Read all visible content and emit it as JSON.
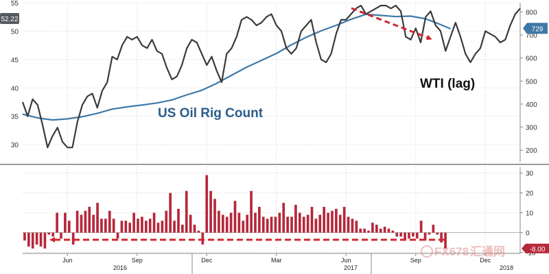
{
  "chart_data": [
    {
      "type": "line",
      "panel": "top",
      "x_axis": {
        "month_labels": [
          "Jun",
          "Sep",
          "Dec",
          "Mar",
          "Jun",
          "Sep",
          "Dec"
        ],
        "year_labels": [
          "2016",
          "2017",
          "2018"
        ]
      },
      "y_left": {
        "ticks": [
          30,
          35,
          40,
          45,
          50,
          55
        ],
        "range": [
          27,
          55
        ],
        "tag": "52.22",
        "tag_value": 52.22
      },
      "y_right": {
        "ticks": [
          200,
          300,
          400,
          500,
          600,
          700,
          800
        ],
        "range": [
          150,
          840
        ],
        "tag": "729",
        "tag_value": 729
      },
      "annotations": {
        "rig_label": "US Oil Rig Count",
        "wti_label": "WTI (lag)"
      },
      "series": [
        {
          "name": "WTI (lag)",
          "axis": "left",
          "color": "#3a3a3a",
          "t": [
            0.0,
            0.01,
            0.02,
            0.03,
            0.04,
            0.05,
            0.06,
            0.07,
            0.08,
            0.09,
            0.1,
            0.11,
            0.12,
            0.13,
            0.14,
            0.15,
            0.16,
            0.17,
            0.18,
            0.19,
            0.2,
            0.21,
            0.22,
            0.23,
            0.24,
            0.25,
            0.26,
            0.27,
            0.28,
            0.29,
            0.3,
            0.31,
            0.32,
            0.33,
            0.34,
            0.35,
            0.36,
            0.37,
            0.38,
            0.39,
            0.4,
            0.41,
            0.42,
            0.43,
            0.44,
            0.45,
            0.46,
            0.47,
            0.48,
            0.49,
            0.5,
            0.51,
            0.52,
            0.53,
            0.54,
            0.55,
            0.56,
            0.57,
            0.58,
            0.59,
            0.6,
            0.61,
            0.62,
            0.63,
            0.64,
            0.65,
            0.66,
            0.67,
            0.68,
            0.69,
            0.7,
            0.71,
            0.72,
            0.73,
            0.74,
            0.75,
            0.76,
            0.77,
            0.78,
            0.79,
            0.8,
            0.81,
            0.82,
            0.83,
            0.84,
            0.85,
            0.86,
            0.87,
            0.88,
            0.89,
            0.9,
            0.91,
            0.92,
            0.93,
            0.94,
            0.95,
            0.96,
            0.97,
            0.98,
            0.99,
            1.0
          ],
          "y": [
            37.5,
            35.0,
            38.0,
            37.0,
            33.5,
            29.5,
            31.5,
            33.0,
            30.5,
            29.5,
            29.5,
            34.0,
            37.0,
            38.5,
            39.0,
            36.5,
            39.5,
            41.0,
            45.5,
            45.0,
            47.5,
            49.0,
            48.5,
            49.0,
            47.5,
            47.0,
            48.5,
            46.5,
            46.0,
            43.5,
            41.5,
            42.0,
            44.0,
            47.0,
            48.5,
            48.0,
            46.0,
            44.0,
            45.5,
            43.0,
            41.0,
            46.0,
            47.0,
            49.0,
            52.0,
            52.5,
            52.0,
            51.0,
            51.5,
            52.5,
            53.0,
            51.0,
            50.0,
            47.0,
            46.0,
            47.0,
            50.0,
            51.0,
            52.0,
            48.0,
            45.0,
            44.5,
            46.0,
            49.5,
            52.0,
            52.0,
            53.0,
            54.0,
            54.5,
            53.0,
            53.5,
            54.0,
            54.5,
            54.5,
            54.0,
            54.5,
            53.5,
            49.0,
            48.5,
            50.5,
            48.0,
            52.5,
            53.5,
            51.0,
            50.0,
            46.5,
            49.0,
            51.5,
            49.0,
            46.0,
            44.5,
            46.0,
            47.0,
            50.0,
            49.5,
            49.0,
            48.0,
            48.5,
            51.0,
            53.0,
            54.0
          ]
        },
        {
          "name": "US Oil Rig Count",
          "axis": "right",
          "color": "#3e78a7",
          "t": [
            0.0,
            0.03,
            0.06,
            0.09,
            0.12,
            0.15,
            0.18,
            0.21,
            0.24,
            0.27,
            0.3,
            0.33,
            0.36,
            0.39,
            0.42,
            0.45,
            0.48,
            0.51,
            0.54,
            0.57,
            0.6,
            0.63,
            0.66,
            0.69,
            0.72,
            0.75,
            0.78,
            0.81,
            0.84,
            0.86
          ],
          "y": [
            356,
            340,
            331,
            336,
            345,
            360,
            378,
            388,
            396,
            405,
            418,
            440,
            460,
            490,
            525,
            560,
            590,
            620,
            657,
            690,
            718,
            742,
            768,
            790,
            785,
            780,
            782,
            770,
            745,
            727
          ]
        }
      ]
    },
    {
      "type": "bar",
      "panel": "bottom",
      "title": "",
      "y_axis": {
        "ticks": [
          -10,
          0,
          10,
          20,
          30
        ],
        "range": [
          -10.5,
          33
        ],
        "tag": "-8.00",
        "tag_value": -8
      },
      "series": [
        {
          "name": "",
          "color": "#b5283a",
          "values": [
            -4,
            -7,
            -8,
            -6,
            -7,
            -8,
            -1,
            -2,
            10,
            -3,
            10,
            6,
            -6,
            11,
            9,
            11,
            13,
            9,
            15,
            7,
            7,
            11,
            7,
            -3,
            6,
            6,
            5,
            10,
            7,
            8,
            6,
            7,
            10,
            5,
            6,
            11,
            20,
            6,
            12,
            4,
            21,
            9,
            4,
            1,
            -6,
            29,
            21,
            17,
            11,
            9,
            8,
            10,
            16,
            10,
            6,
            9,
            21,
            10,
            13,
            8,
            7,
            8,
            8,
            10,
            15,
            8,
            8,
            14,
            10,
            8,
            9,
            13,
            7,
            9,
            13,
            10,
            11,
            12,
            9,
            13,
            8,
            7,
            6,
            2,
            2,
            1,
            5,
            4,
            2,
            3,
            2,
            1,
            -2,
            -2,
            -4,
            -3,
            -2,
            -3,
            6,
            -4,
            -1,
            4,
            -1,
            -5,
            -8
          ]
        }
      ],
      "arrow_color": "#d0282e"
    }
  ],
  "watermark": {
    "text_latin": "FX678",
    "text_cjk": "汇通网",
    "color": "#e08a8a"
  }
}
